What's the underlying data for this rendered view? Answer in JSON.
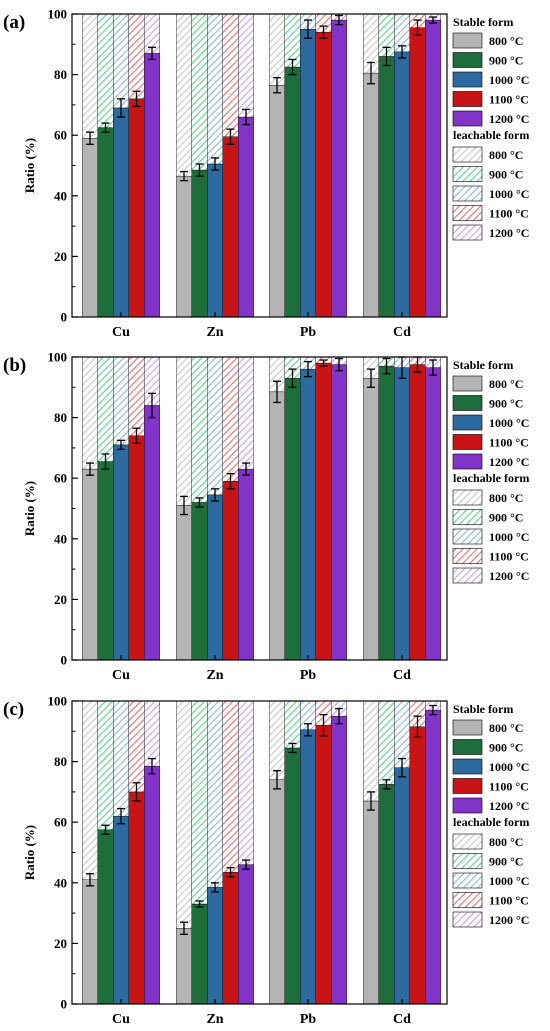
{
  "chart_data": [
    {
      "type": "bar",
      "stacked": true,
      "panel_label": "(a)",
      "categories": [
        "Cu",
        "Zn",
        "Pb",
        "Cd"
      ],
      "ylabel": "Ratio (%)",
      "ylim": [
        0,
        100
      ],
      "yticks": [
        0,
        20,
        40,
        60,
        80,
        100
      ],
      "temperatures": [
        "800 °C",
        "900 °C",
        "1000 °C",
        "1100 °C",
        "1200 °C"
      ],
      "stable_values": [
        [
          59,
          62.5,
          69,
          72,
          87
        ],
        [
          46.5,
          48.5,
          50.5,
          59.5,
          66
        ],
        [
          76.5,
          82.5,
          95,
          94,
          98
        ],
        [
          80.5,
          86,
          87.5,
          95.5,
          98
        ]
      ],
      "stable_errors": [
        [
          2,
          1.5,
          3,
          2.5,
          2
        ],
        [
          1.5,
          2,
          2,
          2.5,
          2.5
        ],
        [
          2.5,
          2.5,
          3,
          2,
          1.5
        ],
        [
          3.5,
          3,
          2,
          2.5,
          1
        ]
      ],
      "leachable_values": [
        [
          41,
          37.5,
          31,
          28,
          13
        ],
        [
          53.5,
          51.5,
          49.5,
          40.5,
          34
        ],
        [
          23.5,
          17.5,
          5,
          6,
          2
        ],
        [
          19.5,
          14,
          12.5,
          4.5,
          2
        ]
      ],
      "legend": {
        "stable_title": "Stable form",
        "leachable_title": "leachable form",
        "placement": "right"
      }
    },
    {
      "type": "bar",
      "stacked": true,
      "panel_label": "(b)",
      "categories": [
        "Cu",
        "Zn",
        "Pb",
        "Cd"
      ],
      "ylabel": "Ratio (%)",
      "ylim": [
        0,
        100
      ],
      "yticks": [
        0,
        20,
        40,
        60,
        80,
        100
      ],
      "temperatures": [
        "800 °C",
        "900 °C",
        "1000 °C",
        "1100 °C",
        "1200 °C"
      ],
      "stable_values": [
        [
          63,
          65.5,
          71,
          74,
          84
        ],
        [
          51,
          52,
          54.5,
          59,
          63
        ],
        [
          88.5,
          93,
          96,
          98,
          97.5
        ],
        [
          93,
          97,
          96.5,
          97.5,
          96.5
        ]
      ],
      "stable_errors": [
        [
          2,
          2.5,
          1.5,
          2.5,
          4
        ],
        [
          3,
          1.5,
          2,
          2.5,
          2
        ],
        [
          3.5,
          3,
          2.5,
          1,
          2
        ],
        [
          3,
          2.5,
          3.5,
          2.5,
          2.5
        ]
      ],
      "leachable_values": [
        [
          37,
          34.5,
          29,
          26,
          16
        ],
        [
          49,
          48,
          45.5,
          41,
          37
        ],
        [
          11.5,
          7,
          4,
          2,
          2.5
        ],
        [
          7,
          3,
          3.5,
          2.5,
          3.5
        ]
      ],
      "legend": {
        "stable_title": "Stable form",
        "leachable_title": "leachable form",
        "placement": "right"
      }
    },
    {
      "type": "bar",
      "stacked": true,
      "panel_label": "(c)",
      "categories": [
        "Cu",
        "Zn",
        "Pb",
        "Cd"
      ],
      "ylabel": "Ratio (%)",
      "ylim": [
        0,
        100
      ],
      "yticks": [
        0,
        20,
        40,
        60,
        80,
        100
      ],
      "temperatures": [
        "800 °C",
        "900 °C",
        "1000 °C",
        "1100 °C",
        "1200 °C"
      ],
      "stable_values": [
        [
          41,
          57.5,
          62,
          70,
          78.5
        ],
        [
          25,
          33,
          38.5,
          43.5,
          46
        ],
        [
          74,
          84.5,
          90.5,
          92,
          95
        ],
        [
          67,
          72.5,
          78,
          91.5,
          97
        ]
      ],
      "stable_errors": [
        [
          2,
          1.5,
          2.5,
          3,
          2.5
        ],
        [
          2,
          1,
          1.5,
          1.5,
          1.5
        ],
        [
          3,
          1.5,
          2,
          3.5,
          2.5
        ],
        [
          3,
          1.5,
          3,
          3.5,
          1.5
        ]
      ],
      "leachable_values": [
        [
          59,
          42.5,
          38,
          30,
          21.5
        ],
        [
          75,
          67,
          61.5,
          56.5,
          54
        ],
        [
          26,
          15.5,
          9.5,
          8,
          5
        ],
        [
          33,
          27.5,
          22,
          8.5,
          3
        ]
      ],
      "legend": {
        "stable_title": "Stable form",
        "leachable_title": "leachable form",
        "placement": "right"
      }
    }
  ],
  "colors": {
    "stable": [
      "#b4b4b4",
      "#1e6e3c",
      "#2d6aa0",
      "#c81414",
      "#8233c8"
    ],
    "leachable": [
      "#c8c8c8",
      "#5ccf8c",
      "#8cb4dc",
      "#e66e6e",
      "#c8a0f0"
    ]
  }
}
